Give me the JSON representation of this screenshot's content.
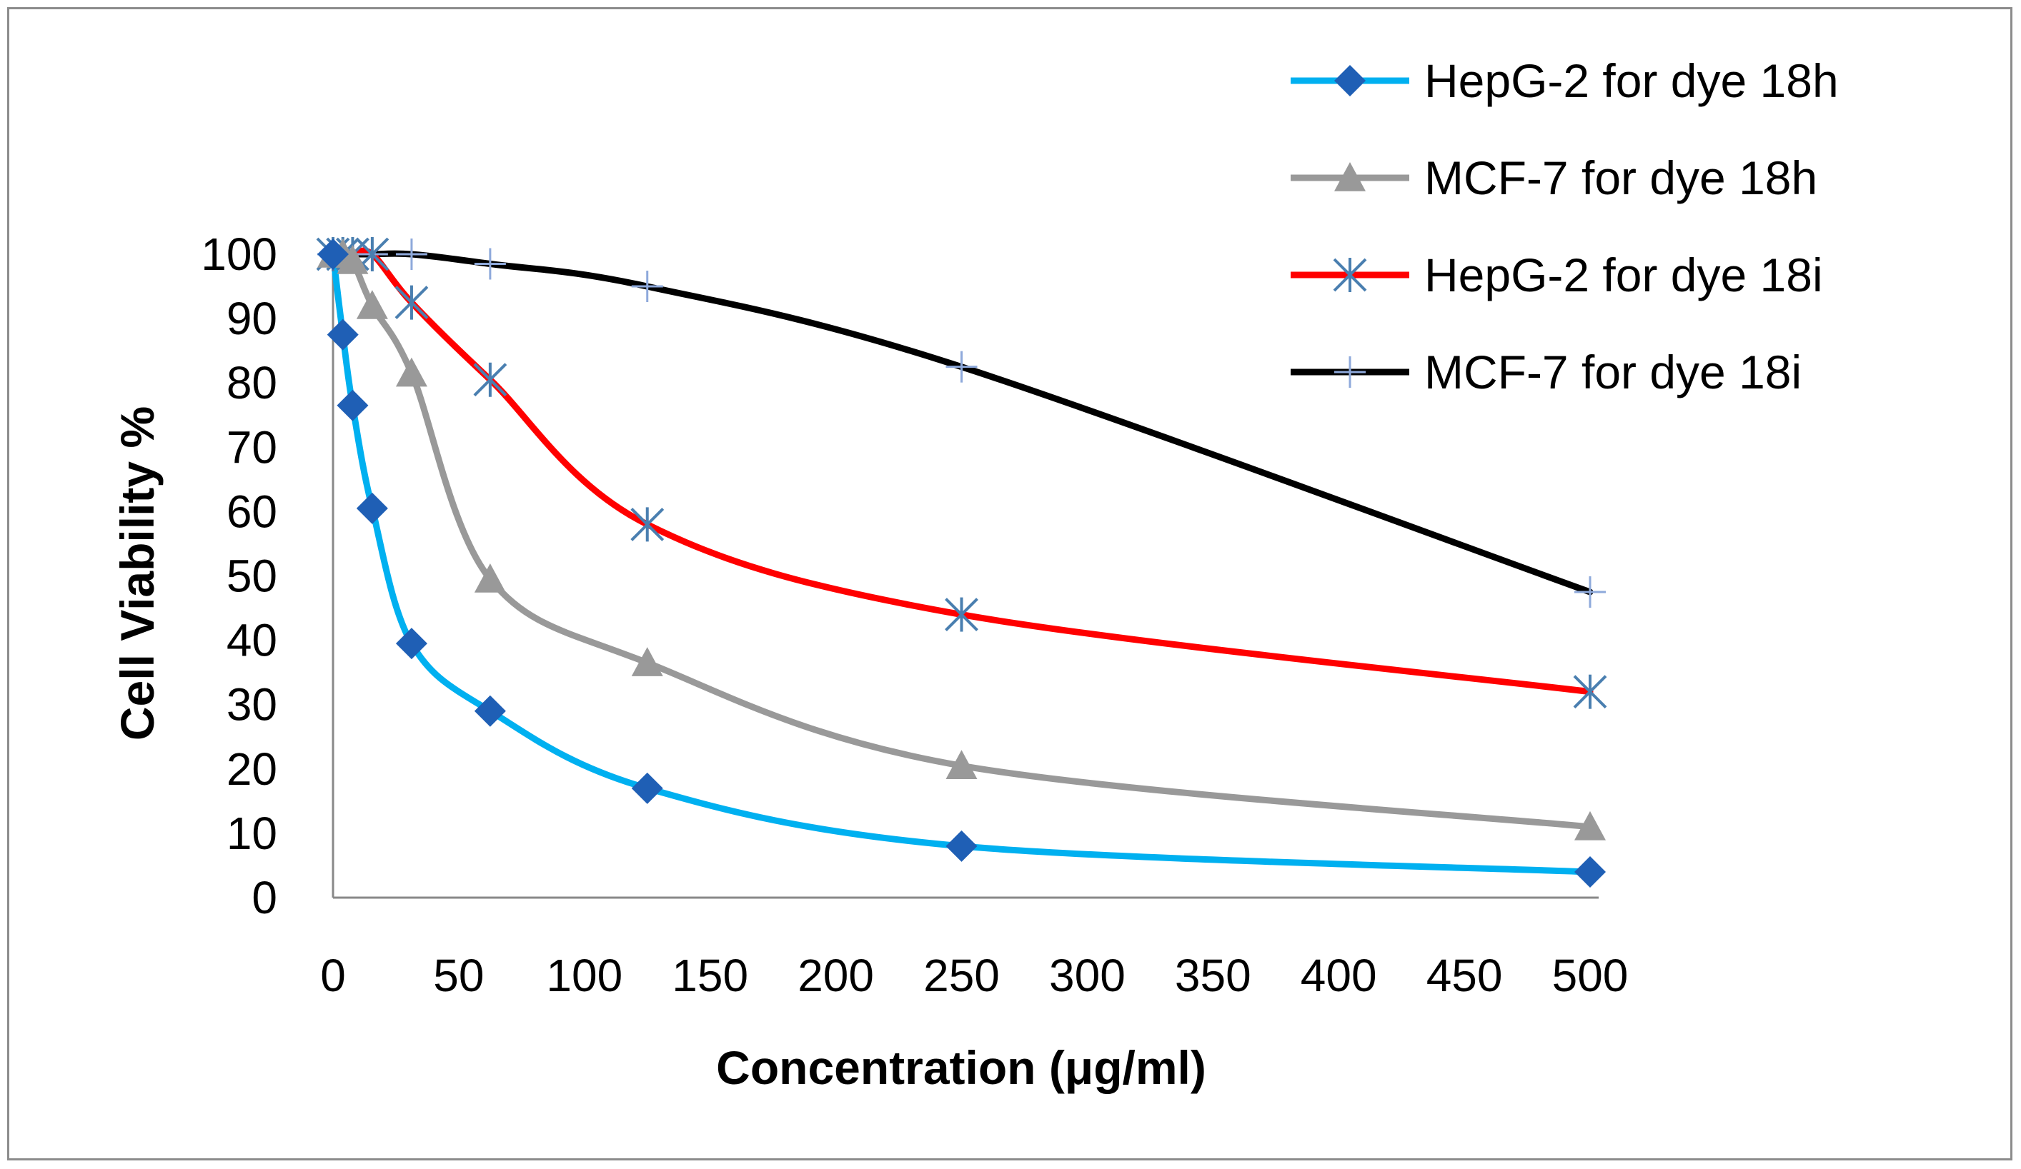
{
  "chart_data": {
    "type": "line",
    "title": "",
    "xlabel": "Concentration (μg/ml)",
    "ylabel": "Cell  Viability %",
    "xlim": [
      0,
      500
    ],
    "ylim": [
      0,
      100
    ],
    "xticks": [
      0,
      50,
      100,
      150,
      200,
      250,
      300,
      350,
      400,
      450,
      500
    ],
    "yticks": [
      0,
      10,
      20,
      30,
      40,
      50,
      60,
      70,
      80,
      90,
      100
    ],
    "grid": false,
    "legend_position": "top-right",
    "series": [
      {
        "name": "HepG-2 for dye 18h",
        "color": "#00b0f0",
        "marker": "diamond",
        "marker_color": "#1f5fb5",
        "x": [
          0,
          3.9,
          7.8,
          15.6,
          31.25,
          62.5,
          125,
          250,
          500
        ],
        "y": [
          100,
          87.5,
          76.5,
          60.5,
          39.5,
          29,
          17,
          8,
          4
        ]
      },
      {
        "name": "MCF-7 for dye 18h",
        "color": "#999999",
        "marker": "triangle",
        "marker_color": "#999999",
        "x": [
          0,
          3.9,
          7.8,
          15.6,
          31.25,
          62.5,
          125,
          250,
          500
        ],
        "y": [
          100,
          100,
          99,
          92,
          81.5,
          49.5,
          36.5,
          20.5,
          11
        ]
      },
      {
        "name": "HepG-2 for dye 18i",
        "color": "#ff0000",
        "marker": "star",
        "marker_color": "#4a7fb0",
        "x": [
          0,
          3.9,
          7.8,
          15.6,
          31.25,
          62.5,
          125,
          250,
          500
        ],
        "y": [
          100,
          100,
          100,
          100,
          92.5,
          80.5,
          58,
          44,
          32
        ]
      },
      {
        "name": "MCF-7 for dye 18i",
        "color": "#000000",
        "marker": "plus",
        "marker_color": "#8ea9db",
        "x": [
          0,
          3.9,
          7.8,
          15.6,
          31.25,
          62.5,
          125,
          250,
          500
        ],
        "y": [
          100,
          100,
          100,
          100,
          100,
          98.5,
          95,
          82.5,
          47.5
        ]
      }
    ]
  }
}
